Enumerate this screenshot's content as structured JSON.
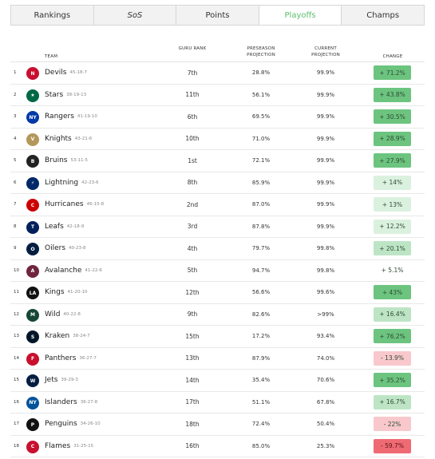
{
  "tabs": [
    {
      "label": "Rankings",
      "active": false,
      "italic": false
    },
    {
      "label": "SoS",
      "active": false,
      "italic": true
    },
    {
      "label": "Points",
      "active": false,
      "italic": false
    },
    {
      "label": "Playoffs",
      "active": true,
      "italic": false
    },
    {
      "label": "Champs",
      "active": false,
      "italic": false
    }
  ],
  "headers": {
    "team": "TEAM",
    "guru": "GURU RANK",
    "pre": "PRESEASON PROJECTION",
    "cur": "CURRENT PROJECTION",
    "chg": "CHANGE"
  },
  "colors": {
    "change_strong_positive": "#6cc47f",
    "change_positive": "#bde5c5",
    "change_mild_positive": "#dbf1df",
    "change_neutral": "#ffffff",
    "change_mild_negative": "#f8c8cc",
    "change_strong_negative": "#ef6b73"
  },
  "rows": [
    {
      "rank": "1",
      "team": "Devils",
      "record": "45-18-7",
      "guru": "7th",
      "pre": "28.8%",
      "cur": "99.9%",
      "change": "+ 71.2%",
      "change_value": 71.2,
      "logo_icon": "devils-logo-icon",
      "logo_color": "#c8102e",
      "logo_text": "N"
    },
    {
      "rank": "2",
      "team": "Stars",
      "record": "38-19-13",
      "guru": "11th",
      "pre": "56.1%",
      "cur": "99.9%",
      "change": "+ 43.8%",
      "change_value": 43.8,
      "logo_icon": "stars-logo-icon",
      "logo_color": "#006847",
      "logo_text": "★"
    },
    {
      "rank": "3",
      "team": "Rangers",
      "record": "41-19-10",
      "guru": "6th",
      "pre": "69.5%",
      "cur": "99.9%",
      "change": "+ 30.5%",
      "change_value": 30.5,
      "logo_icon": "rangers-logo-icon",
      "logo_color": "#0038a8",
      "logo_text": "NY"
    },
    {
      "rank": "4",
      "team": "Knights",
      "record": "43-21-6",
      "guru": "10th",
      "pre": "71.0%",
      "cur": "99.9%",
      "change": "+ 28.9%",
      "change_value": 28.9,
      "logo_icon": "knights-logo-icon",
      "logo_color": "#b4975a",
      "logo_text": "V"
    },
    {
      "rank": "5",
      "team": "Bruins",
      "record": "53-11-5",
      "guru": "1st",
      "pre": "72.1%",
      "cur": "99.9%",
      "change": "+ 27.9%",
      "change_value": 27.9,
      "logo_icon": "bruins-logo-icon",
      "logo_color": "#222222",
      "logo_text": "B"
    },
    {
      "rank": "6",
      "team": "Lightning",
      "record": "42-23-6",
      "guru": "8th",
      "pre": "85.9%",
      "cur": "99.9%",
      "change": "+ 14%",
      "change_value": 14,
      "logo_icon": "lightning-logo-icon",
      "logo_color": "#002868",
      "logo_text": "⚡"
    },
    {
      "rank": "7",
      "team": "Hurricanes",
      "record": "46-15-8",
      "guru": "2nd",
      "pre": "87.0%",
      "cur": "99.9%",
      "change": "+ 13%",
      "change_value": 13,
      "logo_icon": "hurricanes-logo-icon",
      "logo_color": "#cc0000",
      "logo_text": "C"
    },
    {
      "rank": "8",
      "team": "Leafs",
      "record": "42-18-9",
      "guru": "3rd",
      "pre": "87.8%",
      "cur": "99.9%",
      "change": "+ 12.2%",
      "change_value": 12.2,
      "logo_icon": "leafs-logo-icon",
      "logo_color": "#00205b",
      "logo_text": "T"
    },
    {
      "rank": "9",
      "team": "Oilers",
      "record": "40-23-8",
      "guru": "4th",
      "pre": "79.7%",
      "cur": "99.8%",
      "change": "+ 20.1%",
      "change_value": 20.1,
      "logo_icon": "oilers-logo-icon",
      "logo_color": "#041e42",
      "logo_text": "O"
    },
    {
      "rank": "10",
      "team": "Avalanche",
      "record": "41-22-6",
      "guru": "5th",
      "pre": "94.7%",
      "cur": "99.8%",
      "change": "+ 5.1%",
      "change_value": 5.1,
      "logo_icon": "avalanche-logo-icon",
      "logo_color": "#6f263d",
      "logo_text": "A"
    },
    {
      "rank": "11",
      "team": "Kings",
      "record": "41-20-10",
      "guru": "12th",
      "pre": "56.6%",
      "cur": "99.6%",
      "change": "+ 43%",
      "change_value": 43,
      "logo_icon": "kings-logo-icon",
      "logo_color": "#111111",
      "logo_text": "LA"
    },
    {
      "rank": "12",
      "team": "Wild",
      "record": "40-22-8",
      "guru": "9th",
      "pre": "82.6%",
      "cur": ">99%",
      "change": "+ 16.4%",
      "change_value": 16.4,
      "logo_icon": "wild-logo-icon",
      "logo_color": "#154734",
      "logo_text": "M"
    },
    {
      "rank": "13",
      "team": "Kraken",
      "record": "38-24-7",
      "guru": "15th",
      "pre": "17.2%",
      "cur": "93.4%",
      "change": "+ 76.2%",
      "change_value": 76.2,
      "logo_icon": "kraken-logo-icon",
      "logo_color": "#001628",
      "logo_text": "S"
    },
    {
      "rank": "14",
      "team": "Panthers",
      "record": "36-27-7",
      "guru": "13th",
      "pre": "87.9%",
      "cur": "74.0%",
      "change": "- 13.9%",
      "change_value": -13.9,
      "logo_icon": "panthers-logo-icon",
      "logo_color": "#c8102e",
      "logo_text": "F"
    },
    {
      "rank": "15",
      "team": "Jets",
      "record": "39-29-3",
      "guru": "14th",
      "pre": "35.4%",
      "cur": "70.6%",
      "change": "+ 35.2%",
      "change_value": 35.2,
      "logo_icon": "jets-logo-icon",
      "logo_color": "#041e42",
      "logo_text": "W"
    },
    {
      "rank": "16",
      "team": "Islanders",
      "record": "36-27-8",
      "guru": "17th",
      "pre": "51.1%",
      "cur": "67.8%",
      "change": "+ 16.7%",
      "change_value": 16.7,
      "logo_icon": "islanders-logo-icon",
      "logo_color": "#00539b",
      "logo_text": "NY"
    },
    {
      "rank": "17",
      "team": "Penguins",
      "record": "34-26-10",
      "guru": "18th",
      "pre": "72.4%",
      "cur": "50.4%",
      "change": "- 22%",
      "change_value": -22,
      "logo_icon": "penguins-logo-icon",
      "logo_color": "#111111",
      "logo_text": "P"
    },
    {
      "rank": "18",
      "team": "Flames",
      "record": "31-25-15",
      "guru": "16th",
      "pre": "85.0%",
      "cur": "25.3%",
      "change": "- 59.7%",
      "change_value": -59.7,
      "logo_icon": "flames-logo-icon",
      "logo_color": "#c8102e",
      "logo_text": "C"
    }
  ]
}
